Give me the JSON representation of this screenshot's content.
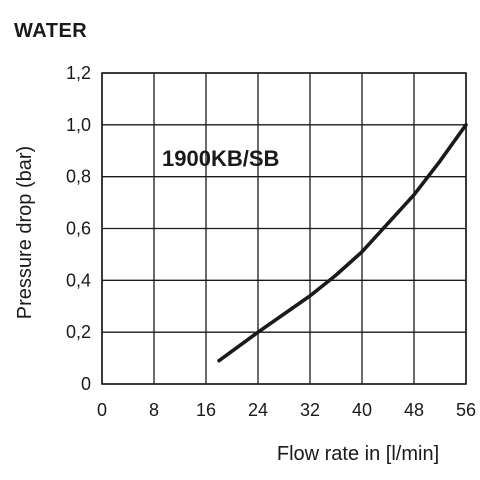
{
  "heading": "WATER",
  "chart_data": {
    "type": "line",
    "title": "",
    "annotation": "1900KB/SB",
    "xlabel": "Flow rate in [l/min]",
    "ylabel": "Pressure drop (bar)",
    "xlim": [
      0,
      56
    ],
    "ylim": [
      0,
      1.2
    ],
    "xticks": [
      0,
      8,
      16,
      24,
      32,
      40,
      48,
      56
    ],
    "yticks": [
      0,
      0.2,
      0.4,
      0.6,
      0.8,
      1.0,
      1.2
    ],
    "xtick_labels": [
      "0",
      "8",
      "16",
      "24",
      "32",
      "40",
      "48",
      "56"
    ],
    "ytick_labels": [
      "0",
      "0,2",
      "0,4",
      "0,6",
      "0,8",
      "1,0",
      "1,2"
    ],
    "grid": true,
    "series": [
      {
        "x": [
          18,
          24,
          32,
          36,
          40,
          44,
          48,
          52,
          56
        ],
        "y": [
          0.09,
          0.2,
          0.34,
          0.42,
          0.51,
          0.62,
          0.73,
          0.86,
          1.0
        ],
        "color": "#1a1a1a"
      }
    ]
  }
}
